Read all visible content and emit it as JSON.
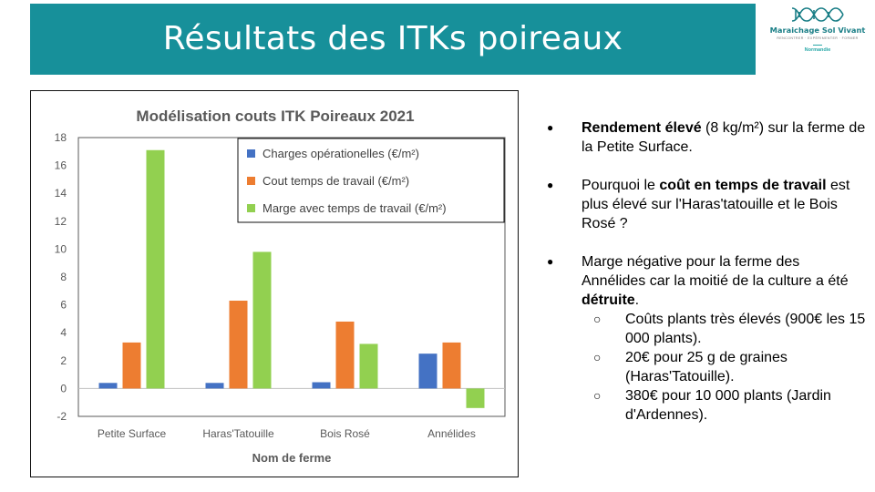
{
  "slide": {
    "title": "Résultats des ITKs poireaux"
  },
  "logo": {
    "name": "Maraichage Sol Vivant",
    "tagline": "RENCONTRER · EXPÉRIMENTER · FORMER",
    "region": "Normandie",
    "accent": "#2aa8a8"
  },
  "chart_data": {
    "type": "bar",
    "title": "Modélisation couts ITK Poireaux 2021",
    "xlabel": "Nom de ferme",
    "ylabel": "",
    "ylim": [
      -2,
      18
    ],
    "yticks": [
      -2,
      0,
      2,
      4,
      6,
      8,
      10,
      12,
      14,
      16,
      18
    ],
    "categories": [
      "Petite Surface",
      "Haras'Tatouille",
      "Bois Rosé",
      "Annélides"
    ],
    "series": [
      {
        "name": "Charges opérationelles (€/m²)",
        "color": "#4472c4",
        "values": [
          0.4,
          0.4,
          0.45,
          2.5
        ]
      },
      {
        "name": "Cout temps de travail (€/m²)",
        "color": "#ed7d31",
        "values": [
          3.3,
          6.3,
          4.8,
          3.3
        ]
      },
      {
        "name": "Marge avec temps de travail (€/m²)",
        "color": "#92d050",
        "values": [
          17.1,
          9.8,
          3.2,
          -1.4
        ]
      }
    ],
    "legend": "top-right",
    "grid": false
  },
  "bullets": [
    {
      "parts": [
        {
          "text": "Rendement élevé",
          "bold": true
        },
        {
          "text": " (8 kg/m²) sur la ferme de la Petite Surface.",
          "bold": false
        }
      ]
    },
    {
      "parts": [
        {
          "text": "Pourquoi le ",
          "bold": false
        },
        {
          "text": "coût en temps de travail",
          "bold": true
        },
        {
          "text": " est plus élevé sur l'Haras'tatouille et le Bois Rosé ?",
          "bold": false
        }
      ]
    },
    {
      "parts": [
        {
          "text": "Marge négative pour la ferme des Annélides car la moitié de la culture a été ",
          "bold": false
        },
        {
          "text": "détruite",
          "bold": true
        },
        {
          "text": ".",
          "bold": false
        }
      ],
      "subs": [
        "Coûts plants très élevés (900€ les 15 000 plants).",
        "20€ pour 25 g de graines (Haras'Tatouille).",
        "380€ pour 10 000 plants (Jardin d'Ardennes)."
      ]
    }
  ]
}
